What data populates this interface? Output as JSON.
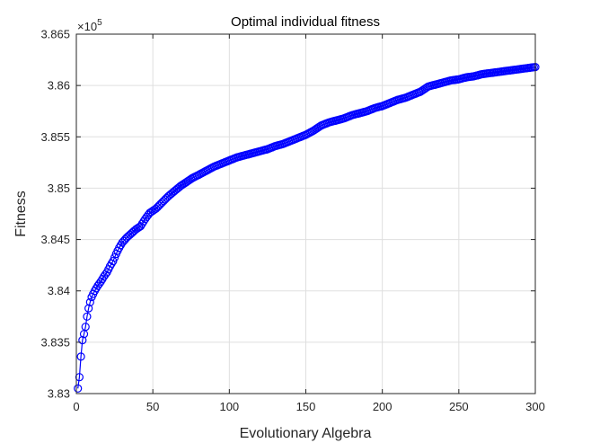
{
  "chart_data": {
    "type": "line",
    "title": "Optimal individual fitness",
    "xlabel": "Evolutionary Algebra",
    "ylabel": "Fitness",
    "exponent_label": {
      "base": "×10",
      "power": "5"
    },
    "xlim": [
      0,
      300
    ],
    "ylim": [
      3.83,
      3.865
    ],
    "xticks": [
      0,
      50,
      100,
      150,
      200,
      250,
      300
    ],
    "xtick_labels": [
      "0",
      "50",
      "100",
      "150",
      "200",
      "250",
      "300"
    ],
    "yticks": [
      3.83,
      3.835,
      3.84,
      3.845,
      3.85,
      3.855,
      3.86,
      3.865
    ],
    "ytick_labels": [
      "3.83",
      "3.835",
      "3.84",
      "3.845",
      "3.85",
      "3.855",
      "3.86",
      "3.865"
    ],
    "grid": true,
    "marker": "circle",
    "color": "#0000ff",
    "series": [
      {
        "points": [
          [
            1,
            3.8305
          ],
          [
            2,
            3.8316
          ],
          [
            3,
            3.8336
          ],
          [
            4,
            3.8352
          ],
          [
            5,
            3.8358
          ],
          [
            6,
            3.8365
          ],
          [
            7,
            3.8375
          ],
          [
            8,
            3.8383
          ],
          [
            9,
            3.8389
          ],
          [
            10,
            3.8394
          ],
          [
            12,
            3.84
          ],
          [
            14,
            3.8405
          ],
          [
            16,
            3.8409
          ],
          [
            18,
            3.8414
          ],
          [
            20,
            3.8418
          ],
          [
            22,
            3.8424
          ],
          [
            24,
            3.8429
          ],
          [
            26,
            3.8436
          ],
          [
            28,
            3.8442
          ],
          [
            30,
            3.8447
          ],
          [
            33,
            3.8452
          ],
          [
            36,
            3.8456
          ],
          [
            39,
            3.846
          ],
          [
            42,
            3.8463
          ],
          [
            45,
            3.847
          ],
          [
            48,
            3.8476
          ],
          [
            52,
            3.848
          ],
          [
            56,
            3.8486
          ],
          [
            60,
            3.8492
          ],
          [
            64,
            3.8497
          ],
          [
            68,
            3.8502
          ],
          [
            72,
            3.8506
          ],
          [
            76,
            3.851
          ],
          [
            80,
            3.8513
          ],
          [
            85,
            3.8517
          ],
          [
            90,
            3.8521
          ],
          [
            95,
            3.8524
          ],
          [
            100,
            3.8527
          ],
          [
            105,
            3.853
          ],
          [
            110,
            3.8532
          ],
          [
            115,
            3.8534
          ],
          [
            120,
            3.8536
          ],
          [
            125,
            3.8538
          ],
          [
            130,
            3.8541
          ],
          [
            135,
            3.8543
          ],
          [
            140,
            3.8546
          ],
          [
            145,
            3.8549
          ],
          [
            150,
            3.8552
          ],
          [
            155,
            3.8556
          ],
          [
            160,
            3.8561
          ],
          [
            165,
            3.8564
          ],
          [
            170,
            3.8566
          ],
          [
            175,
            3.8568
          ],
          [
            180,
            3.8571
          ],
          [
            185,
            3.8573
          ],
          [
            190,
            3.8575
          ],
          [
            195,
            3.8578
          ],
          [
            200,
            3.858
          ],
          [
            205,
            3.8583
          ],
          [
            210,
            3.8586
          ],
          [
            215,
            3.8588
          ],
          [
            220,
            3.8591
          ],
          [
            225,
            3.8594
          ],
          [
            230,
            3.8599
          ],
          [
            235,
            3.8601
          ],
          [
            240,
            3.8603
          ],
          [
            245,
            3.8605
          ],
          [
            250,
            3.8606
          ],
          [
            255,
            3.8608
          ],
          [
            260,
            3.8609
          ],
          [
            265,
            3.8611
          ],
          [
            270,
            3.8612
          ],
          [
            275,
            3.8613
          ],
          [
            280,
            3.8614
          ],
          [
            285,
            3.8615
          ],
          [
            290,
            3.8616
          ],
          [
            295,
            3.8617
          ],
          [
            300,
            3.8618
          ]
        ]
      }
    ]
  }
}
